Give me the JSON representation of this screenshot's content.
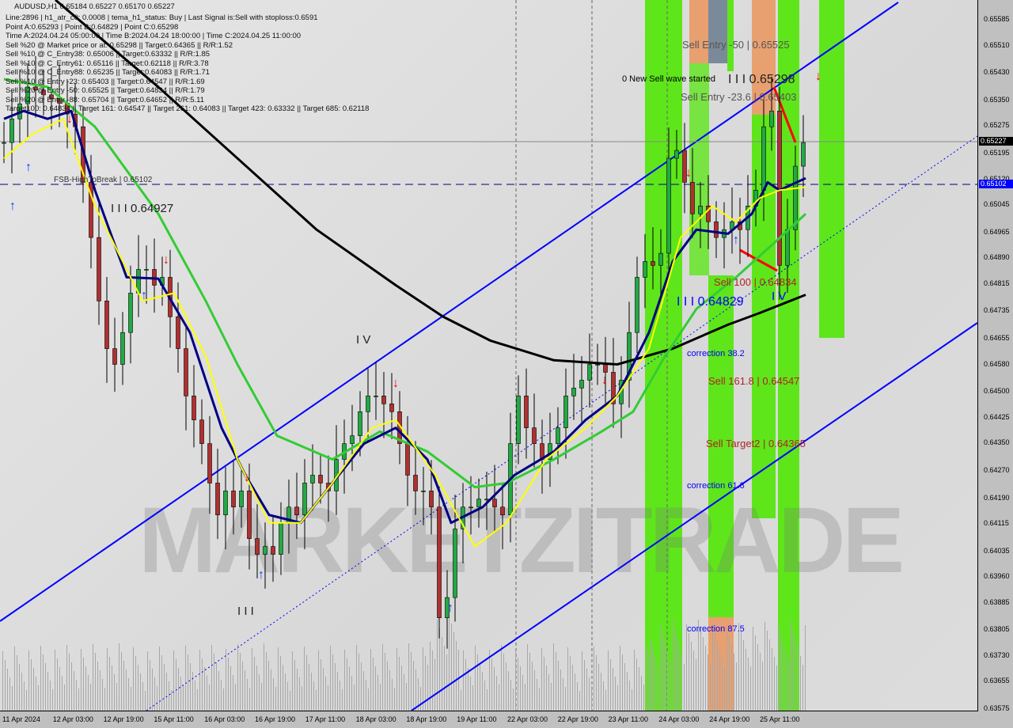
{
  "header": {
    "symbol_line": "AUDUSD,H1  0.65184 0.65227 0.65170 0.65227",
    "lines": [
      "Line:2896 | h1_atr_c0: 0.0008 | tema_h1_status: Buy | Last Signal is:Sell with stoploss:0.6591",
      "Point A:0.65293 | Point B:0.64829 | Point C:0.65298",
      "Time A:2024.04.24 05:00:00 | Time B:2024.04.24 18:00:00 | Time C:2024.04.25 11:00:00",
      "Sell %20 @ Market price or at: 0.65298 || Target:0.64365 || R/R:1.52",
      "Sell %10 @ C_Entry38: 0.65006 || Target:0.63332 || R/R:1.85",
      "Sell %10 @ C_Entry61: 0.65116 || Target:0.62118 || R/R:3.78",
      "Sell %10 @ C_Entry88: 0.65235 || Target:0.64083 || R/R:1.71",
      "Sell %10 @ Entry -23: 0.65403 || Target:0.64547 || R/R:1.69",
      "Sell %20 @ Entry -50: 0.65525 || Target:0.64834 || R/R:1.79",
      "Sell %20 @ Entry -88: 0.65704 || Target:0.64652 || R/R:5.11",
      "Target100: 0.64834 || Target 161: 0.64547 || Target 261: 0.64083 || Target 423: 0.63332 || Target 685: 0.62118"
    ]
  },
  "annotations": {
    "fsb": "FSB-HighToBreak | 0.65102",
    "wave_iii_left": "I I I 0.64927",
    "wave_iv_left": "I V",
    "wave_iii_bottom": "I I I",
    "sell_entry_50": "Sell Entry -50 | 0.65525",
    "new_sell_wave": "0 New Sell wave started",
    "wave_iii_top": "I I I 0.65298",
    "sell_entry_236": "Sell Entry -23.6 | 0.65403",
    "sell_100": "Sell 100 | 0.64834",
    "wave_iii_mid": "I I I 0.64829",
    "wave_iv_right": "I V",
    "correction_382": "correction 38.2",
    "sell_1618": "Sell 161.8 | 0.64547",
    "sell_target2": "Sell Target2 | 0.64365",
    "correction_618": "correction 61.8",
    "correction_875": "correction 87.5",
    "watermark": "MARKETZITRADE"
  },
  "price_labels": {
    "current": "0.65227",
    "current_color": "#000000",
    "fsb": "0.65102",
    "fsb_color": "#0000ff"
  },
  "chart_data": {
    "type": "candlestick",
    "symbol": "AUDUSD",
    "timeframe": "H1",
    "ylim": [
      0.63575,
      0.65585
    ],
    "y_ticks": [
      "0.65585",
      "0.65510",
      "0.65430",
      "0.65350",
      "0.65275",
      "0.65195",
      "0.65120",
      "0.65045",
      "0.64965",
      "0.64890",
      "0.64815",
      "0.64735",
      "0.64655",
      "0.64580",
      "0.64500",
      "0.64425",
      "0.64350",
      "0.64270",
      "0.64190",
      "0.64115",
      "0.64035",
      "0.63960",
      "0.63885",
      "0.63805",
      "0.63730",
      "0.63655",
      "0.63575"
    ],
    "x_ticks": [
      "11 Apr 2024",
      "12 Apr 03:00",
      "12 Apr 19:00",
      "15 Apr 11:00",
      "16 Apr 03:00",
      "16 Apr 19:00",
      "17 Apr 11:00",
      "18 Apr 03:00",
      "18 Apr 19:00",
      "19 Apr 11:00",
      "22 Apr 03:00",
      "22 Apr 19:00",
      "23 Apr 11:00",
      "24 Apr 03:00",
      "24 Apr 19:00",
      "25 Apr 11:00"
    ],
    "closes": [
      0.65227,
      0.65296,
      0.6534,
      0.65389,
      0.6538,
      0.65366,
      0.65355,
      0.65342,
      0.6531,
      0.65273,
      0.65111,
      0.6495,
      0.64765,
      0.64626,
      0.6458,
      0.64673,
      0.64788,
      0.64857,
      0.64857,
      0.64811,
      0.64834,
      0.64719,
      0.64626,
      0.64488,
      0.64418,
      0.64349,
      0.64234,
      0.64141,
      0.64211,
      0.64164,
      0.64211,
      0.64072,
      0.64026,
      0.64049,
      0.64026,
      0.64118,
      0.64164,
      0.64141,
      0.64234,
      0.64257,
      0.64234,
      0.64211,
      0.64303,
      0.64349,
      0.64372,
      0.64442,
      0.64488,
      0.64488,
      0.64465,
      0.64442,
      0.64349,
      0.64257,
      0.64211,
      0.64211,
      0.64164,
      0.63841,
      0.639,
      0.641,
      0.64164,
      0.64164,
      0.64187,
      0.64187,
      0.64164,
      0.64141,
      0.64349,
      0.64488,
      0.64395,
      0.64349,
      0.64303,
      0.64349,
      0.64395,
      0.64488,
      0.64511,
      0.64534,
      0.6458,
      0.6458,
      0.64557,
      0.64465,
      0.64534,
      0.64673,
      0.64834,
      0.6488,
      0.64869,
      0.64904,
      0.65181,
      0.65204,
      0.65111,
      0.65019,
      0.65042,
      0.64996,
      0.6495,
      0.64973,
      0.64996,
      0.64973,
      0.65042,
      0.65088,
      0.65273,
      0.65319,
      0.64869,
      0.64973,
      0.65158,
      0.65227
    ],
    "overlays": [
      {
        "color": "#000000",
        "points": [
          [
            6.5,
            0.65643
          ],
          [
            19.5,
            0.65389
          ],
          [
            29.5,
            0.65181
          ],
          [
            39.5,
            0.64973
          ],
          [
            49.5,
            0.64811
          ],
          [
            55.5,
            0.64719
          ],
          [
            61.5,
            0.64649
          ],
          [
            69.5,
            0.64592
          ],
          [
            77.5,
            0.6458
          ],
          [
            84.5,
            0.64626
          ],
          [
            91.5,
            0.64696
          ],
          [
            95.5,
            0.6473
          ],
          [
            101.3,
            0.64783
          ]
        ]
      },
      {
        "color": "#33cc33",
        "points": [
          [
            0,
            0.65412
          ],
          [
            5.5,
            0.65389
          ],
          [
            11.5,
            0.65273
          ],
          [
            19.5,
            0.65019
          ],
          [
            25.5,
            0.64765
          ],
          [
            29.5,
            0.6458
          ],
          [
            34.5,
            0.64372
          ],
          [
            41.5,
            0.64303
          ],
          [
            47.5,
            0.64384
          ],
          [
            53.5,
            0.64326
          ],
          [
            59.5,
            0.64222
          ],
          [
            63.5,
            0.64234
          ],
          [
            69.5,
            0.64303
          ],
          [
            75.5,
            0.64384
          ],
          [
            79.5,
            0.64442
          ],
          [
            83.5,
            0.64603
          ],
          [
            87.5,
            0.64742
          ],
          [
            92.5,
            0.64834
          ],
          [
            97.5,
            0.64938
          ],
          [
            101.3,
            0.65019
          ]
        ]
      },
      {
        "color": "#000080",
        "points": [
          [
            0,
            0.65296
          ],
          [
            2.5,
            0.65319
          ],
          [
            5.5,
            0.65296
          ],
          [
            8.5,
            0.65319
          ],
          [
            11.5,
            0.65088
          ],
          [
            15.5,
            0.64834
          ],
          [
            19.5,
            0.6483
          ],
          [
            23.5,
            0.64673
          ],
          [
            27.5,
            0.64395
          ],
          [
            30.5,
            0.64257
          ],
          [
            33.5,
            0.64141
          ],
          [
            37.5,
            0.64118
          ],
          [
            41.5,
            0.64234
          ],
          [
            45.5,
            0.64349
          ],
          [
            49.5,
            0.64395
          ],
          [
            53.5,
            0.64303
          ],
          [
            56.5,
            0.64118
          ],
          [
            60.5,
            0.64164
          ],
          [
            64.5,
            0.64257
          ],
          [
            69.5,
            0.64326
          ],
          [
            73.5,
            0.64418
          ],
          [
            77.5,
            0.64488
          ],
          [
            81.5,
            0.64673
          ],
          [
            84.5,
            0.6488
          ],
          [
            87.5,
            0.64973
          ],
          [
            91.5,
            0.64961
          ],
          [
            94.5,
            0.65019
          ],
          [
            96.5,
            0.65111
          ],
          [
            98,
            0.65088
          ],
          [
            101.3,
            0.65123
          ]
        ]
      },
      {
        "color": "#ffff00",
        "points": [
          [
            0,
            0.65181
          ],
          [
            3.5,
            0.6525
          ],
          [
            7.5,
            0.65296
          ],
          [
            11.5,
            0.65042
          ],
          [
            17.5,
            0.64765
          ],
          [
            21.5,
            0.64788
          ],
          [
            25.5,
            0.64603
          ],
          [
            29.5,
            0.64303
          ],
          [
            33.5,
            0.64118
          ],
          [
            37.5,
            0.64118
          ],
          [
            41.5,
            0.64234
          ],
          [
            46.5,
            0.64395
          ],
          [
            49.5,
            0.64418
          ],
          [
            54.5,
            0.64257
          ],
          [
            59.5,
            0.64049
          ],
          [
            63.5,
            0.64118
          ],
          [
            68.5,
            0.64303
          ],
          [
            73.5,
            0.64395
          ],
          [
            77.5,
            0.64488
          ],
          [
            81.5,
            0.64626
          ],
          [
            85.5,
            0.6495
          ],
          [
            89.5,
            0.65042
          ],
          [
            92.5,
            0.64996
          ],
          [
            95.5,
            0.65065
          ],
          [
            98,
            0.65088
          ],
          [
            101.3,
            0.65097
          ]
        ]
      }
    ],
    "grid": false
  }
}
